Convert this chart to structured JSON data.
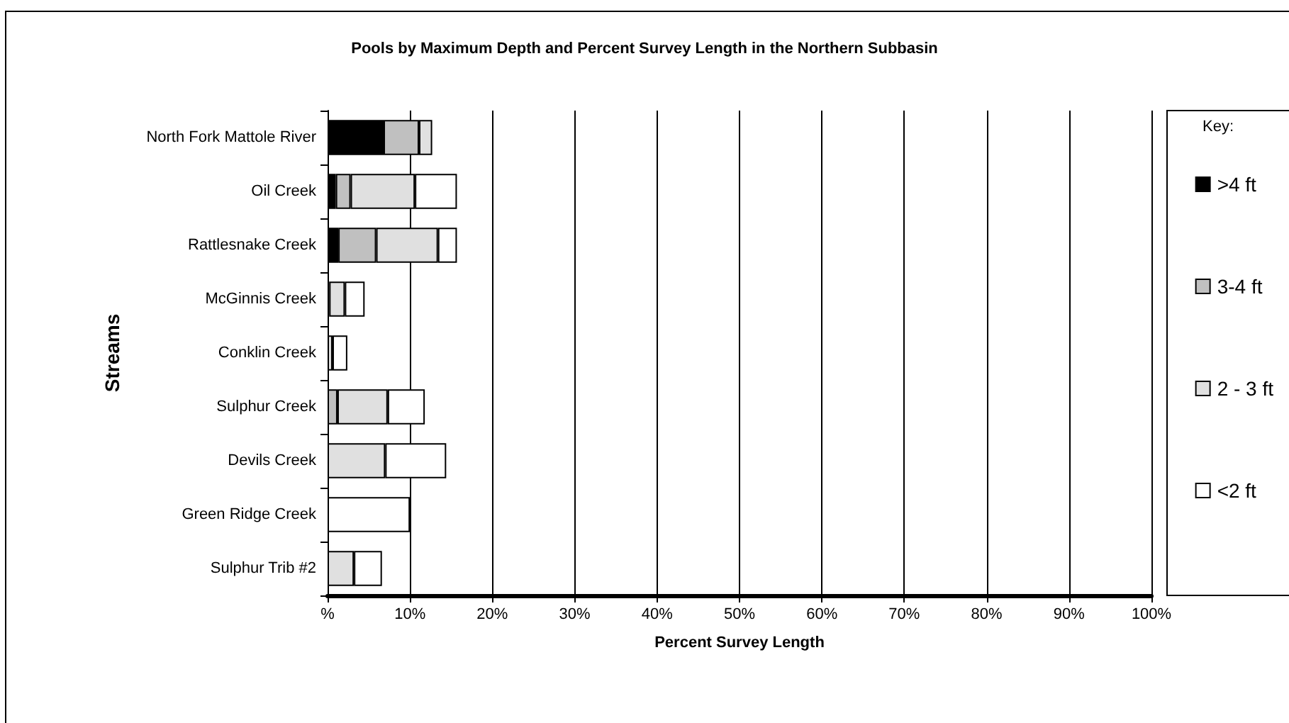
{
  "chart_data": {
    "type": "bar",
    "orientation": "horizontal",
    "stacked": true,
    "title": "Pools by Maximum Depth and Percent Survey Length in the Northern Subbasin",
    "xlabel": "Percent Survey Length",
    "ylabel": "Streams",
    "legend_title": "Key:",
    "categories": [
      "North Fork Mattole River",
      "Oil Creek",
      "Rattlesnake Creek",
      "McGinnis Creek",
      "Conklin Creek",
      "Sulphur Creek",
      "Devils Creek",
      "Green Ridge Creek",
      "Sulphur Trib #2"
    ],
    "series": [
      {
        "name": ">4 ft",
        "color": "#000000",
        "values": [
          6.8,
          1.0,
          1.3,
          0,
          0,
          0,
          0,
          0,
          0
        ]
      },
      {
        "name": "3-4 ft",
        "color": "#c0c0c0",
        "values": [
          4.3,
          1.8,
          4.6,
          0.2,
          0,
          1.2,
          0,
          0,
          0
        ]
      },
      {
        "name": "2 - 3 ft",
        "color": "#e0e0e0",
        "values": [
          1.6,
          7.8,
          7.5,
          1.9,
          0.6,
          6.1,
          7.0,
          0,
          3.2
        ]
      },
      {
        "name": "<2 ft",
        "color": "#ffffff",
        "values": [
          0,
          5.1,
          2.3,
          2.4,
          1.8,
          4.5,
          7.4,
          10.0,
          3.4
        ]
      }
    ],
    "xlim": [
      0,
      100
    ],
    "xticks": [
      {
        "value": 0,
        "label": "%"
      },
      {
        "value": 10,
        "label": "10%"
      },
      {
        "value": 20,
        "label": "20%"
      },
      {
        "value": 30,
        "label": "30%"
      },
      {
        "value": 40,
        "label": "40%"
      },
      {
        "value": 50,
        "label": "50%"
      },
      {
        "value": 60,
        "label": "60%"
      },
      {
        "value": 70,
        "label": "70%"
      },
      {
        "value": 80,
        "label": "80%"
      },
      {
        "value": 90,
        "label": "90%"
      },
      {
        "value": 100,
        "label": "100%"
      }
    ],
    "grid": "x",
    "legend": "right"
  }
}
